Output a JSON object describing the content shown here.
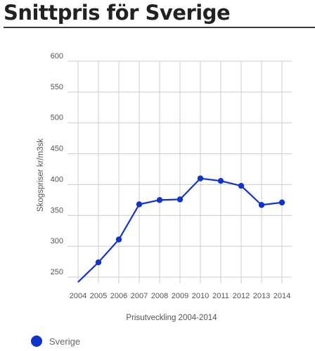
{
  "page": {
    "title": "Snittpris för Sverige"
  },
  "colors": {
    "series": "#1133cc",
    "grid": "#cccccc",
    "rule": "#3a3a3a"
  },
  "chart_data": {
    "type": "line",
    "title": "",
    "xlabel": "Prisutveckling 2004-2014",
    "ylabel": "Skogspriser kr/m3sk",
    "x": [
      "2004",
      "2005",
      "2006",
      "2007",
      "2008",
      "2009",
      "2010",
      "2011",
      "2012",
      "2013",
      "2014"
    ],
    "series": [
      {
        "name": "Sverige",
        "values": [
          242,
          274,
          311,
          368,
          375,
          376,
          410,
          406,
          398,
          367,
          371
        ]
      }
    ],
    "ylim": [
      250,
      600
    ],
    "yticks": [
      "250",
      "300",
      "350",
      "400",
      "450",
      "500",
      "550",
      "600"
    ],
    "grid": true,
    "legend_position": "bottom-left"
  }
}
